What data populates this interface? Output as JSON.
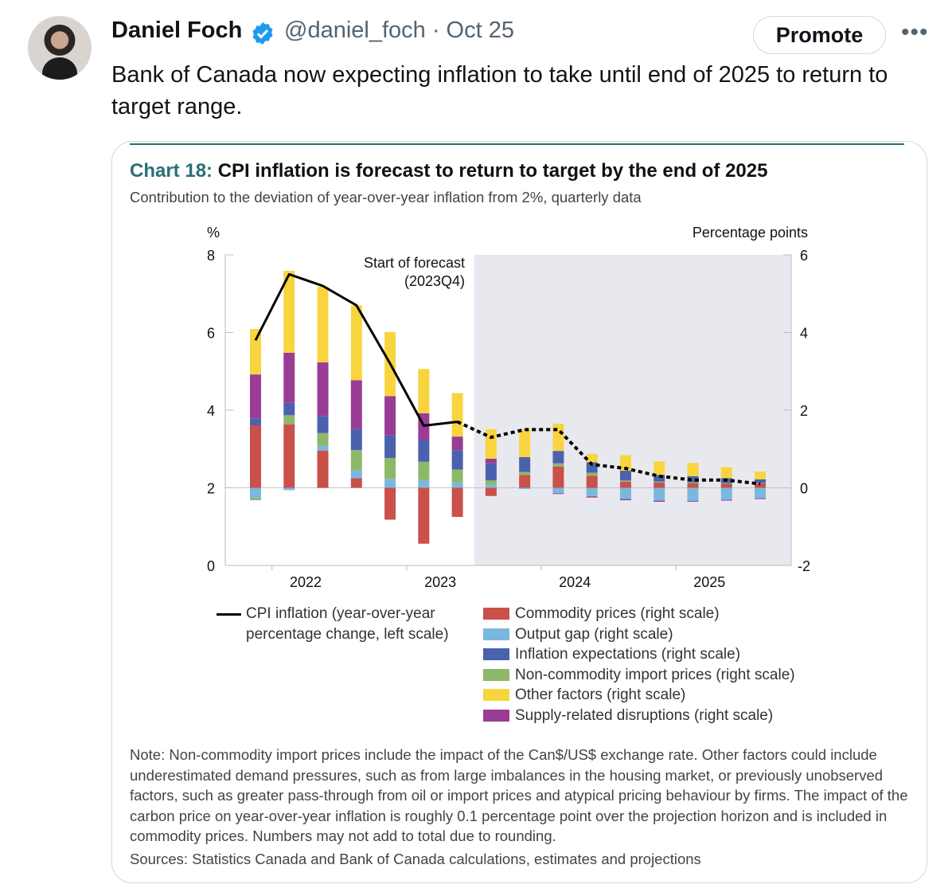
{
  "tweet": {
    "author_name": "Daniel Foch",
    "handle_date": "@daniel_foch · Oct 25",
    "promote_label": "Promote",
    "more_label": "•••",
    "text": "Bank of Canada now expecting inflation to take until end of 2025 to return to target range."
  },
  "card": {
    "title_number": "Chart 18:",
    "title": "CPI inflation is forecast to return to target by the end of 2025",
    "subtitle": "Contribution to the deviation of year-over-year inflation from 2%, quarterly data",
    "note": "Note: Non-commodity import prices include the impact of the Can$/US$ exchange rate. Other factors could include underestimated demand pressures, such as from large imbalances in the housing market, or previously unobserved factors, such as greater pass-through from oil or import prices and atypical pricing behaviour by firms. The impact of the carbon price on year-over-year inflation is roughly 0.1 percentage point over the projection horizon and is included in commodity prices. Numbers may not add to total due to rounding.",
    "sources": "Sources: Statistics Canada and Bank of Canada calculations, estimates and projections"
  },
  "chart_data": {
    "type": "bar",
    "stacked": true,
    "title": "CPI inflation is forecast to return to target by the end of 2025",
    "left_axis": {
      "label": "%",
      "range": [
        0,
        8
      ],
      "ticks": [
        "0",
        "2",
        "4",
        "6",
        "8"
      ]
    },
    "right_axis": {
      "label": "Percentage points",
      "range": [
        -2,
        6
      ],
      "ticks": [
        "-2",
        "0",
        "2",
        "4",
        "6"
      ]
    },
    "year_labels": [
      "2022",
      "2023",
      "2024",
      "2025"
    ],
    "annotation": {
      "line1": "Start of forecast",
      "line2": "(2023Q4)"
    },
    "forecast_start_index": 7,
    "categories": [
      "2022Q1",
      "2022Q2",
      "2022Q3",
      "2022Q4",
      "2023Q1",
      "2023Q2",
      "2023Q3",
      "2023Q4",
      "2024Q1",
      "2024Q2",
      "2024Q3",
      "2024Q4",
      "2025Q1",
      "2025Q2",
      "2025Q3",
      "2025Q4"
    ],
    "series": [
      {
        "name": "Commodity prices (right scale)",
        "color": "#c9514a",
        "values": [
          1.61,
          1.63,
          0.96,
          0.25,
          -0.82,
          -1.44,
          -0.75,
          -0.21,
          0.33,
          0.55,
          0.31,
          0.16,
          0.14,
          0.12,
          0.11,
          0.12
        ]
      },
      {
        "name": "Output gap (right scale)",
        "color": "#7ab8de",
        "values": [
          -0.27,
          -0.06,
          0.12,
          0.2,
          0.23,
          0.2,
          0.14,
          0.08,
          -0.03,
          -0.14,
          -0.22,
          -0.29,
          -0.33,
          -0.34,
          -0.31,
          -0.27
        ]
      },
      {
        "name": "Non-commodity import prices (right scale)",
        "color": "#8db86a",
        "values": [
          -0.05,
          0.24,
          0.33,
          0.52,
          0.54,
          0.47,
          0.33,
          0.11,
          0.08,
          0.08,
          0.08,
          0.03,
          0.02,
          0.02,
          0.01,
          0.01
        ]
      },
      {
        "name": "Inflation expectations (right scale)",
        "color": "#4a62ae",
        "values": [
          0.18,
          0.32,
          0.44,
          0.54,
          0.58,
          0.55,
          0.5,
          0.44,
          0.38,
          0.32,
          0.27,
          0.25,
          0.17,
          0.16,
          0.13,
          0.09
        ]
      },
      {
        "name": "Supply-related disruptions (right scale)",
        "color": "#9a3c96",
        "values": [
          1.13,
          1.29,
          1.38,
          1.26,
          1.01,
          0.7,
          0.35,
          0.12,
          0,
          -0.02,
          -0.03,
          -0.03,
          -0.03,
          -0.02,
          -0.02,
          -0.02
        ]
      },
      {
        "name": "Other factors (right scale)",
        "color": "#f8d53f",
        "values": [
          1.17,
          2.11,
          1.95,
          1.93,
          1.65,
          1.14,
          1.12,
          0.76,
          0.72,
          0.7,
          0.21,
          0.4,
          0.35,
          0.34,
          0.28,
          0.2
        ]
      }
    ],
    "line": {
      "name": "CPI inflation (year-over-year percentage change, left scale)",
      "legend_line1": "CPI inflation (year-over-year",
      "legend_line2": "percentage change, left scale)",
      "color": "#000000",
      "values": [
        5.8,
        7.5,
        7.2,
        6.7,
        5.2,
        3.6,
        3.7,
        3.3,
        3.5,
        3.5,
        2.6,
        2.5,
        2.3,
        2.2,
        2.2,
        2.1
      ]
    },
    "legend_order": [
      0,
      1,
      3,
      2,
      5,
      4
    ],
    "colors": {
      "forecast_shade": "#e8e9ef",
      "accent": "#2a6f78"
    }
  }
}
